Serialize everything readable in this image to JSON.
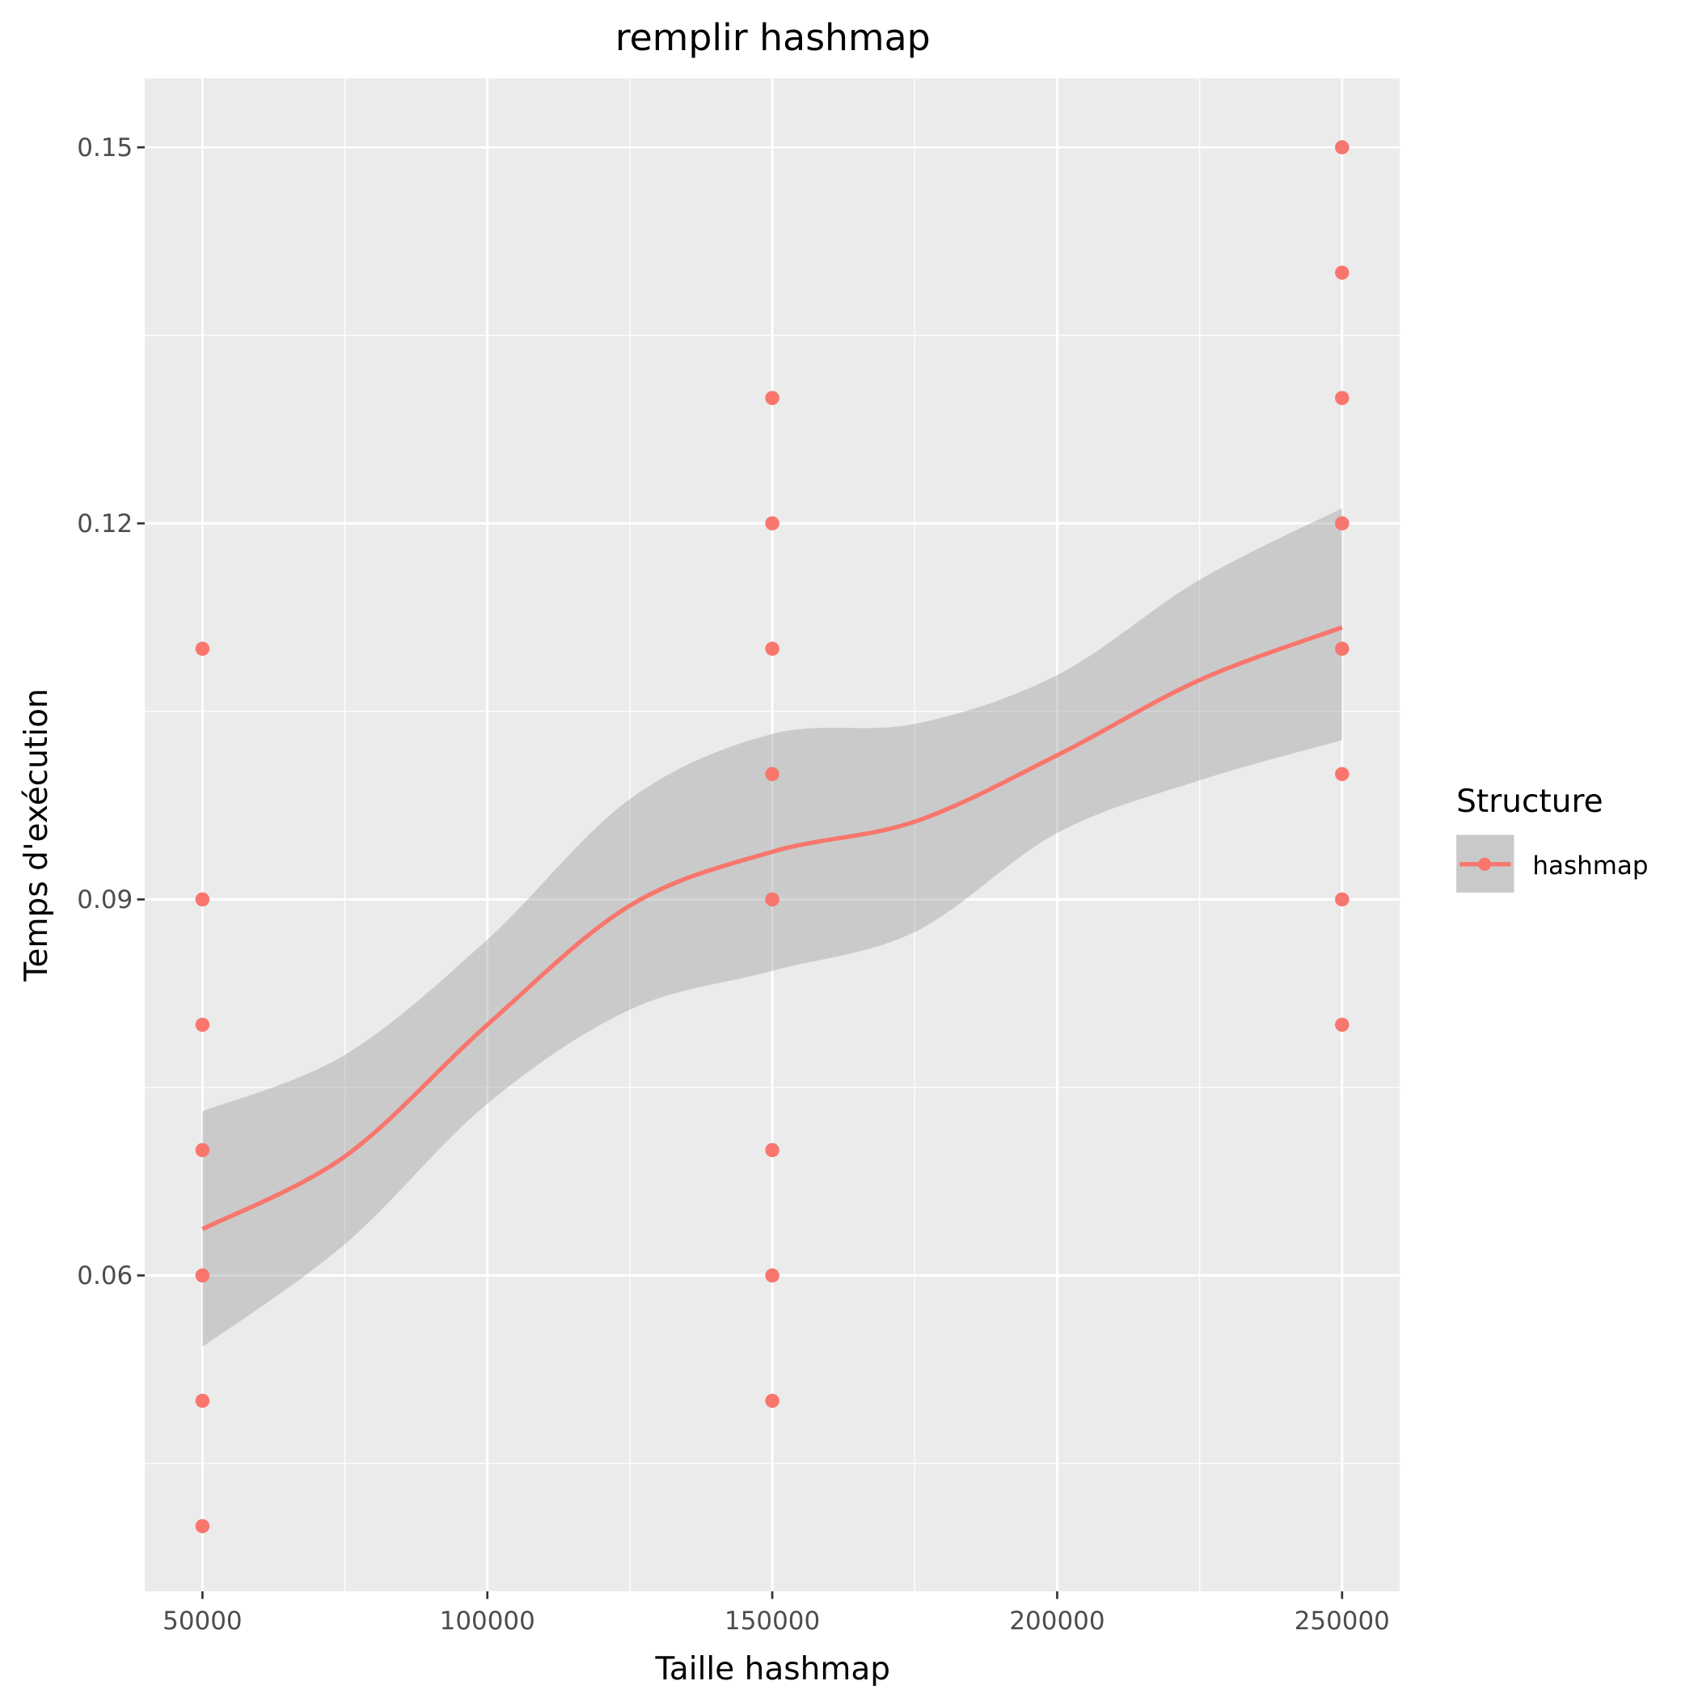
{
  "chart_data": {
    "type": "scatter",
    "title": "remplir hashmap",
    "xlabel": "Taille hashmap",
    "ylabel": "Temps d'exécution",
    "xlim": [
      39876,
      260124
    ],
    "ylim": [
      0.0348,
      0.1555
    ],
    "x_ticks": [
      50000,
      100000,
      150000,
      200000,
      250000
    ],
    "x_tick_labels": [
      "50000",
      "100000",
      "150000",
      "200000",
      "250000"
    ],
    "x_minor": [
      75000,
      125000,
      175000,
      225000
    ],
    "y_ticks": [
      0.06,
      0.09,
      0.12,
      0.15
    ],
    "y_tick_labels": [
      "0.06",
      "0.09",
      "0.12",
      "0.15"
    ],
    "y_minor": [
      0.045,
      0.075,
      0.105,
      0.135
    ],
    "grid": true,
    "legend": {
      "title": "Structure",
      "entries": [
        "hashmap"
      ],
      "position": "right"
    },
    "colors": {
      "series": "#F8766D",
      "band": "#999999",
      "panel": "#EBEBEB"
    },
    "series": [
      {
        "name": "hashmap",
        "points": [
          [
            50000,
            0.11
          ],
          [
            50000,
            0.09
          ],
          [
            50000,
            0.08
          ],
          [
            50000,
            0.07
          ],
          [
            50000,
            0.06
          ],
          [
            50000,
            0.05
          ],
          [
            50000,
            0.04
          ],
          [
            150000,
            0.13
          ],
          [
            150000,
            0.12
          ],
          [
            150000,
            0.11
          ],
          [
            150000,
            0.1
          ],
          [
            150000,
            0.09
          ],
          [
            150000,
            0.07
          ],
          [
            150000,
            0.06
          ],
          [
            150000,
            0.05
          ],
          [
            250000,
            0.15
          ],
          [
            250000,
            0.14
          ],
          [
            250000,
            0.13
          ],
          [
            250000,
            0.12
          ],
          [
            250000,
            0.11
          ],
          [
            250000,
            0.1
          ],
          [
            250000,
            0.09
          ],
          [
            250000,
            0.08
          ]
        ],
        "smooth": {
          "x": [
            50000,
            75000,
            100000,
            125000,
            150000,
            175000,
            200000,
            225000,
            250000
          ],
          "y": [
            0.0637,
            0.0695,
            0.08,
            0.0895,
            0.0938,
            0.0962,
            0.1015,
            0.1075,
            0.1117
          ],
          "lower": [
            0.0543,
            0.0625,
            0.0737,
            0.0812,
            0.0843,
            0.0874,
            0.0953,
            0.0995,
            0.1027
          ],
          "upper": [
            0.0731,
            0.0776,
            0.0868,
            0.098,
            0.1032,
            0.104,
            0.1079,
            0.1155,
            0.1212
          ]
        }
      }
    ]
  }
}
